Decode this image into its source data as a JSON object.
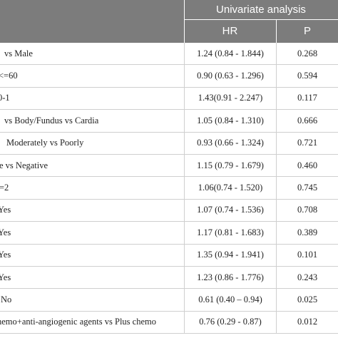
{
  "header": {
    "group_title": "Univariate analysis",
    "col_hr": "HR",
    "col_p": "P"
  },
  "rows": [
    {
      "label": "vs Male",
      "hr": "1.24 (0.84 - 1.844)",
      "p": "0.268"
    },
    {
      "label": "<=60",
      "hr": "0.90 (0.63 - 1.296)",
      "p": "0.594"
    },
    {
      "label": "0-1",
      "hr": "1.43(0.91 - 2.247)",
      "p": "0.117"
    },
    {
      "label": "vs Body/Fundus vs Cardia",
      "hr": "1.05 (0.84 - 1.310)",
      "p": "0.666"
    },
    {
      "label": "Moderately vs Poorly",
      "hr": "0.93 (0.66 - 1.324)",
      "p": "0.721"
    },
    {
      "label": "e vs Negative",
      "hr": "1.15 (0.79 - 1.679)",
      "p": "0.460"
    },
    {
      "label": "=2",
      "hr": "1.06(0.74 - 1.520)",
      "p": "0.745"
    },
    {
      "label": "Yes",
      "hr": "1.07 (0.74 - 1.536)",
      "p": "0.708"
    },
    {
      "label": "Yes",
      "hr": "1.17 (0.81 - 1.683)",
      "p": "0.389"
    },
    {
      "label": "Yes",
      "hr": "1.35 (0.94 - 1.941)",
      "p": "0.101"
    },
    {
      "label": "Yes",
      "hr": "1.23 (0.86 - 1.776)",
      "p": "0.243"
    },
    {
      "label": "No",
      "hr": "0.61 (0.40 – 0.94)",
      "p": "0.025"
    },
    {
      "label": "hemo+anti-angiogenic agents vs Plus chemo",
      "hr": "0.76 (0.29 - 0.87)",
      "p": "0.012"
    }
  ]
}
